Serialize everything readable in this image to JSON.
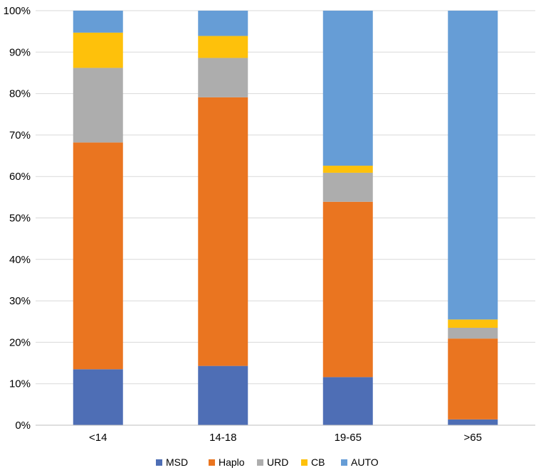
{
  "chart_data": {
    "type": "bar",
    "stacked": true,
    "categories": [
      "<14",
      "14-18",
      "19-65",
      ">65"
    ],
    "series": [
      {
        "name": "MSD",
        "color": "#4E6EB5",
        "values": [
          13.5,
          14.3,
          11.6,
          1.4
        ]
      },
      {
        "name": "Haplo",
        "color": "#EA7520",
        "values": [
          54.7,
          64.8,
          42.3,
          19.5
        ]
      },
      {
        "name": "URD",
        "color": "#ADADAD",
        "values": [
          18.0,
          9.5,
          7.0,
          2.6
        ]
      },
      {
        "name": "CB",
        "color": "#FEC10B",
        "values": [
          8.5,
          5.3,
          1.7,
          2.0
        ]
      },
      {
        "name": "AUTO",
        "color": "#669DD6",
        "values": [
          5.3,
          6.1,
          37.4,
          74.5
        ]
      }
    ],
    "yticks": [
      "0%",
      "10%",
      "20%",
      "30%",
      "40%",
      "50%",
      "60%",
      "70%",
      "80%",
      "90%",
      "100%"
    ],
    "ylim": [
      0,
      100
    ],
    "grid": true,
    "legend_position": "bottom"
  }
}
